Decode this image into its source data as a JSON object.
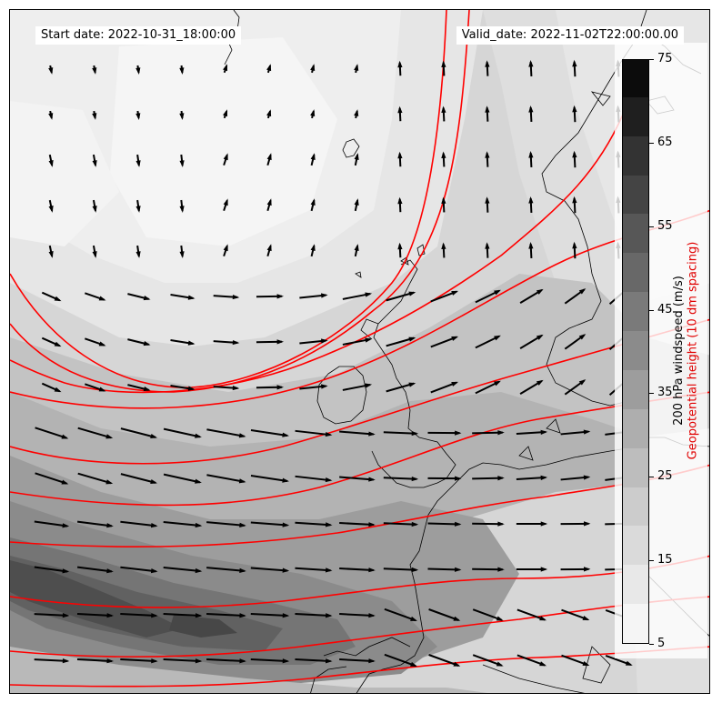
{
  "header": {
    "start_date": "Start date: 2022-10-31_18:00:00",
    "valid_date": "Valid_date: 2022-11-02T22:00:00.00"
  },
  "colorbar": {
    "label_windspeed": "200 hPa windspeed (m/s)",
    "label_geopotential": "Geopotential height (10 dm spacing)",
    "tick_labels": [
      "5",
      "15",
      "25",
      "35",
      "45",
      "55",
      "65",
      "75"
    ],
    "tick_values": [
      5,
      15,
      25,
      35,
      45,
      55,
      65,
      75
    ],
    "range": [
      5,
      75
    ],
    "level_step": 5,
    "levels": [
      5,
      10,
      15,
      20,
      25,
      30,
      35,
      40,
      45,
      50,
      55,
      60,
      65,
      70,
      75
    ],
    "fill_colors": [
      "#f5f5f5",
      "#e8e8e8",
      "#dadada",
      "#cccccc",
      "#bdbdbd",
      "#aeaeae",
      "#9d9d9d",
      "#8b8b8b",
      "#7a7a7a",
      "#686868",
      "#575757",
      "#444444",
      "#333333",
      "#1f1f1f",
      "#0c0c0c"
    ]
  },
  "styles": {
    "contour_color": "#ff0000",
    "coastline_color": "#000000",
    "arrow_color": "#000000"
  }
}
